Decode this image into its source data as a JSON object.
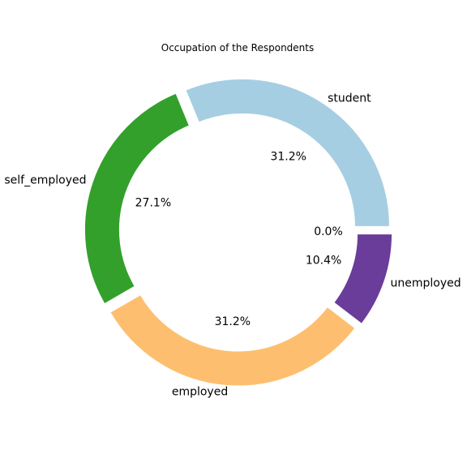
{
  "chart_data": {
    "type": "pie",
    "donut": true,
    "title": "Occupation of the Respondents",
    "slices": [
      {
        "label": "student",
        "value": 31.2,
        "pct_text": "31.2%",
        "color": "#a6cee3"
      },
      {
        "label": "self_employed",
        "value": 27.1,
        "pct_text": "27.1%",
        "color": "#33a02c"
      },
      {
        "label": "employed",
        "value": 31.2,
        "pct_text": "31.2%",
        "color": "#fdbf6f"
      },
      {
        "label": "unemployed",
        "value": 10.4,
        "pct_text": "10.4%",
        "color": "#6a3d9a"
      },
      {
        "label": "",
        "value": 0.0,
        "pct_text": "0.0%",
        "color": "#b15928"
      }
    ],
    "start_angle_deg": 0,
    "direction": "counterclockwise",
    "exploded": true,
    "legend": "none"
  }
}
